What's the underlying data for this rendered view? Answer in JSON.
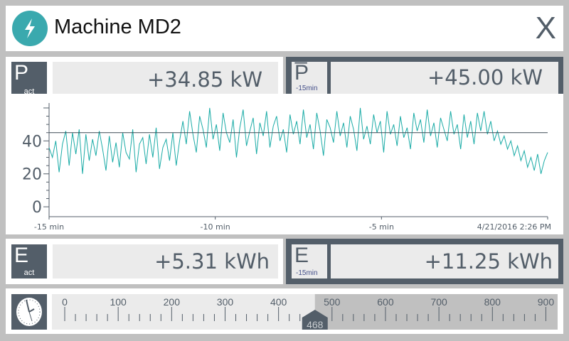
{
  "header": {
    "title": "Machine MD2",
    "close_label": "X",
    "logo_icon": "lightning-bolt-icon"
  },
  "power": {
    "actual": {
      "symbol": "P",
      "subscript": "act",
      "value": "+34.85 kW"
    },
    "average": {
      "symbol": "P̅",
      "subscript": "-15min",
      "value": "+45.00 kW"
    }
  },
  "energy": {
    "actual": {
      "symbol": "E",
      "subscript": "act",
      "value": "+5.31 kWh"
    },
    "last15": {
      "symbol": "E",
      "subscript": "-15min",
      "value": "+11.25 kWh"
    }
  },
  "chart_data": {
    "type": "line",
    "xlim": [
      -15,
      0
    ],
    "ylim": [
      -6,
      63
    ],
    "y_ticks": [
      "0",
      "20",
      "40"
    ],
    "x_tick_labels": [
      "-15 min",
      "-10 min",
      "-5 min",
      "4/21/2016 2:26 PM"
    ],
    "x_tick_values": [
      -15,
      -10,
      -5,
      0
    ],
    "reference_line": 45,
    "series_color": "#1aaba6",
    "values": [
      36,
      30,
      40,
      21,
      38,
      46,
      25,
      45,
      32,
      47,
      20,
      44,
      28,
      41,
      31,
      46,
      35,
      22,
      43,
      27,
      39,
      24,
      45,
      33,
      29,
      47,
      21,
      38,
      42,
      26,
      44,
      30,
      48,
      23,
      36,
      41,
      28,
      45,
      25,
      40,
      52,
      38,
      58,
      44,
      33,
      55,
      47,
      36,
      60,
      41,
      50,
      34,
      57,
      45,
      39,
      53,
      30,
      48,
      59,
      37,
      46,
      54,
      32,
      51,
      43,
      58,
      36,
      49,
      55,
      40,
      47,
      33,
      56,
      44,
      52,
      38,
      59,
      42,
      50,
      35,
      57,
      46,
      31,
      53,
      48,
      39,
      58,
      43,
      51,
      36,
      55,
      47,
      34,
      60,
      41,
      49,
      38,
      56,
      45,
      52,
      33,
      58,
      44,
      50,
      37,
      55,
      42,
      48,
      35,
      57,
      46,
      53,
      39,
      59,
      43,
      51,
      36,
      54,
      47,
      40,
      58,
      44,
      50,
      35,
      56,
      42,
      52,
      38,
      57,
      46,
      58,
      44,
      52,
      40,
      46,
      38,
      43,
      35,
      40,
      31,
      37,
      28,
      34,
      24,
      30,
      22,
      32,
      20,
      28,
      33
    ]
  },
  "slider": {
    "icon": "clock-icon",
    "min": 0,
    "max": 923,
    "value": 468,
    "value_label": "468",
    "tick_labels": [
      "0",
      "100",
      "200",
      "300",
      "400",
      "500",
      "600",
      "700",
      "800",
      "900"
    ]
  }
}
